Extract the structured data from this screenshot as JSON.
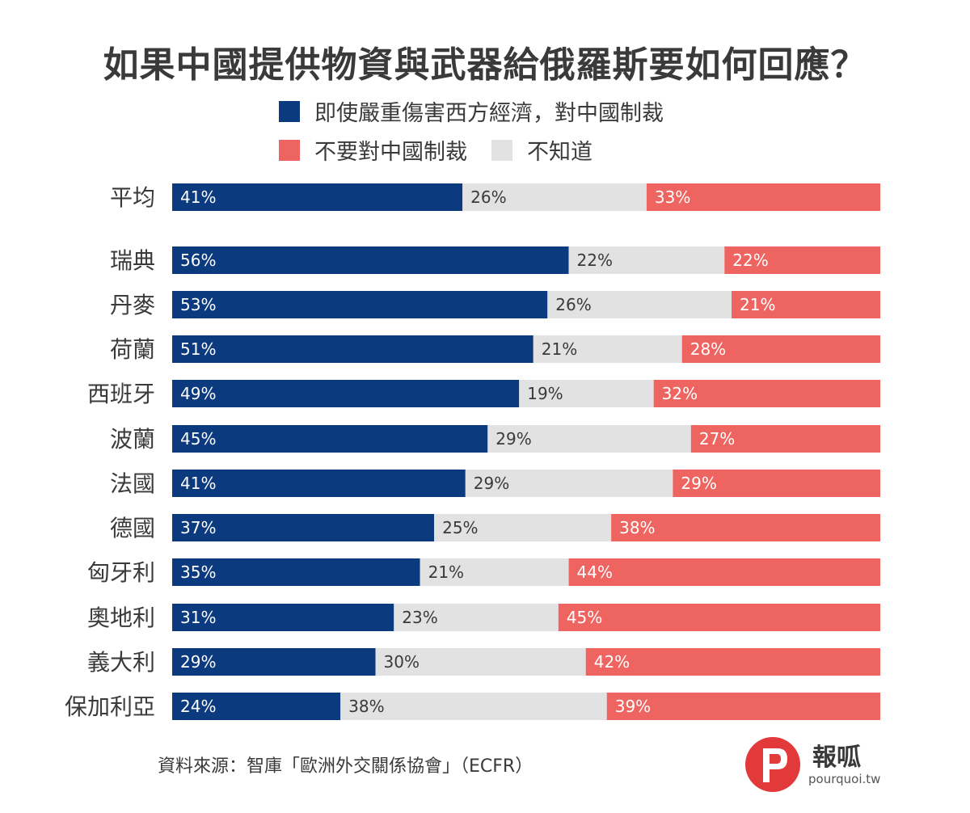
{
  "colors": {
    "sanction": "#0b3a7e",
    "dont_know": "#e2e2e2",
    "no_sanction": "#ee6460",
    "text": "#3a3a3a"
  },
  "legend": {
    "sanction": "即使嚴重傷害西方經濟，對中國制裁",
    "no_sanction": "不要對中國制裁",
    "dont_know": "不知道"
  },
  "source": "資料來源：智庫「歐洲外交關係協會」（ECFR）",
  "logo": {
    "name": "報呱",
    "url": "pourquoi.tw",
    "icon": "pourquoi-logo-icon"
  },
  "chart_data": {
    "type": "bar",
    "orientation": "horizontal",
    "stacked": true,
    "title": "如果中國提供物資與武器給俄羅斯要如何回應？",
    "categories": [
      "平均",
      "瑞典",
      "丹麥",
      "荷蘭",
      "西班牙",
      "波蘭",
      "法國",
      "德國",
      "匈牙利",
      "奧地利",
      "義大利",
      "保加利亞"
    ],
    "series": [
      {
        "name": "即使嚴重傷害西方經濟，對中國制裁",
        "values": [
          41,
          56,
          53,
          51,
          49,
          45,
          41,
          37,
          35,
          31,
          29,
          24
        ]
      },
      {
        "name": "不知道",
        "values": [
          26,
          22,
          26,
          21,
          19,
          29,
          29,
          25,
          21,
          23,
          30,
          38
        ]
      },
      {
        "name": "不要對中國制裁",
        "values": [
          33,
          22,
          21,
          28,
          32,
          27,
          29,
          38,
          44,
          45,
          42,
          39
        ]
      }
    ],
    "value_suffix": "%",
    "xlim": [
      0,
      100
    ],
    "legend_position": "top"
  }
}
